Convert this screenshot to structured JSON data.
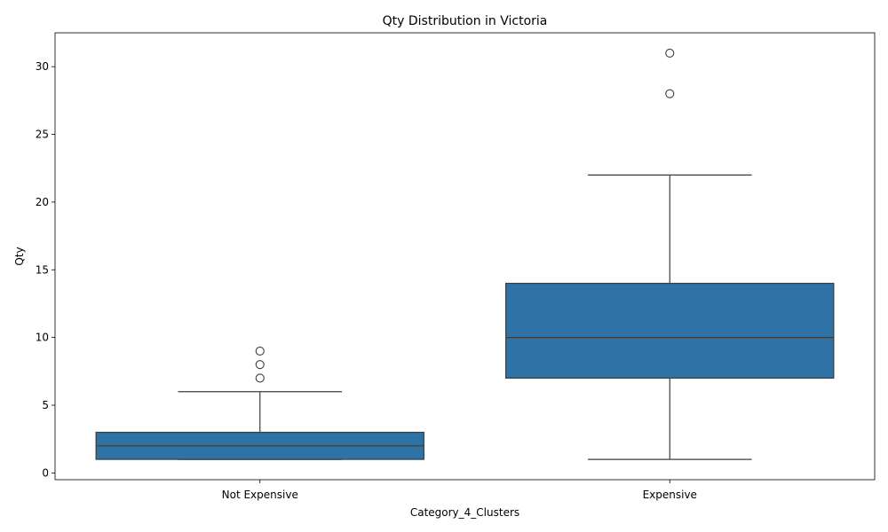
{
  "chart_data": {
    "type": "box",
    "title": "Qty Distribution in Victoria",
    "xlabel": "Category_4_Clusters",
    "ylabel": "Qty",
    "ylim": [
      -0.5,
      32.5
    ],
    "yticks": [
      0,
      5,
      10,
      15,
      20,
      25,
      30
    ],
    "grid": false,
    "legend": "none",
    "box_color": "#2f73a6",
    "edge_color": "#3d3d3d",
    "categories": [
      "Not Expensive",
      "Expensive"
    ],
    "boxes": [
      {
        "category": "Not Expensive",
        "whisker_low": 1,
        "q1": 1,
        "median": 2,
        "q3": 3,
        "whisker_high": 6,
        "outliers": [
          7,
          8,
          9
        ]
      },
      {
        "category": "Expensive",
        "whisker_low": 1,
        "q1": 7,
        "median": 10,
        "q3": 14,
        "whisker_high": 22,
        "outliers": [
          28,
          31
        ]
      }
    ]
  }
}
